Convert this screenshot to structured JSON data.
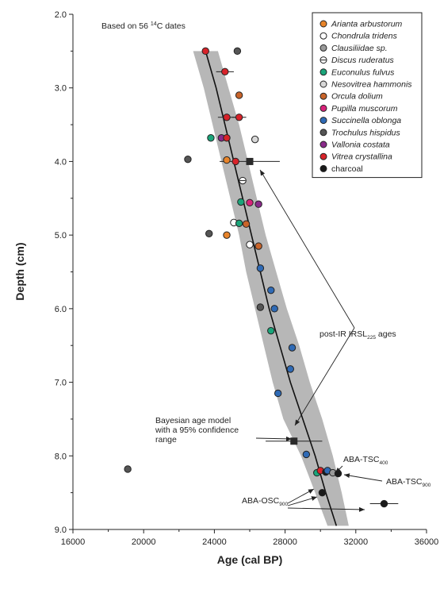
{
  "chart_data": {
    "type": "scatter",
    "xlabel": "Age (cal BP)",
    "ylabel": "Depth (cm)",
    "xlim": [
      16000,
      36000
    ],
    "ylim": [
      2.0,
      9.0
    ],
    "y_inverted": true,
    "xticks": [
      "16000",
      "20000",
      "24000",
      "28000",
      "32000",
      "36000"
    ],
    "yticks": [
      "2.0",
      "3.0",
      "4.0",
      "5.0",
      "6.0",
      "7.0",
      "8.0",
      "9.0"
    ],
    "note": "Based on 56 ¹⁴C dates",
    "legend_position": "top-right",
    "species": [
      {
        "name": "Arianta arbustorum",
        "color": "#e8842a",
        "italic": true,
        "dashed": false
      },
      {
        "name": "Chondrula tridens",
        "color": "#ffffff",
        "italic": true,
        "dashed": false
      },
      {
        "name": "Clausiliidae sp.",
        "color": "#9a9a9a",
        "italic": true,
        "dashed": false
      },
      {
        "name": "Discus ruderatus",
        "color": "#ffffff",
        "italic": true,
        "dashed": true
      },
      {
        "name": "Euconulus fulvus",
        "color": "#1aa57a",
        "italic": true,
        "dashed": false
      },
      {
        "name": "Nesovitrea hammonis",
        "color": "#d8d8d8",
        "italic": true,
        "dashed": false
      },
      {
        "name": "Orcula dolium",
        "color": "#c9642a",
        "italic": true,
        "dashed": false
      },
      {
        "name": "Pupilla muscorum",
        "color": "#d8237a",
        "italic": true,
        "dashed": false
      },
      {
        "name": "Succinella oblonga",
        "color": "#2f6ab5",
        "italic": true,
        "dashed": false
      },
      {
        "name": "Trochulus hispidus",
        "color": "#555555",
        "italic": true,
        "dashed": false
      },
      {
        "name": "Vallonia costata",
        "color": "#8a2a8a",
        "italic": true,
        "dashed": false
      },
      {
        "name": "Vitrea crystallina",
        "color": "#d8232a",
        "italic": true,
        "dashed": false
      },
      {
        "name": "charcoal",
        "color": "#1a1a1a",
        "italic": false,
        "dashed": false
      }
    ],
    "points": [
      {
        "s": 11,
        "x": 23500,
        "y": 2.5,
        "err": 0
      },
      {
        "s": 9,
        "x": 25300,
        "y": 2.5,
        "err": 0
      },
      {
        "s": 11,
        "x": 24600,
        "y": 2.78,
        "err": 500
      },
      {
        "s": 6,
        "x": 25400,
        "y": 3.1,
        "err": 0
      },
      {
        "s": 11,
        "x": 24700,
        "y": 3.4,
        "err": 500
      },
      {
        "s": 11,
        "x": 25400,
        "y": 3.4,
        "err": 400
      },
      {
        "s": 4,
        "x": 23800,
        "y": 3.68,
        "err": 0
      },
      {
        "s": 10,
        "x": 24400,
        "y": 3.68,
        "err": 0
      },
      {
        "s": 11,
        "x": 24700,
        "y": 3.68,
        "err": 0
      },
      {
        "s": 5,
        "x": 26300,
        "y": 3.7,
        "err": 0
      },
      {
        "s": 9,
        "x": 22500,
        "y": 3.97,
        "err": 0
      },
      {
        "s": 0,
        "x": 24700,
        "y": 3.98,
        "err": 0
      },
      {
        "s": 11,
        "x": 25200,
        "y": 4.0,
        "err": 0
      },
      {
        "s": 3,
        "x": 25600,
        "y": 4.26,
        "err": 0
      },
      {
        "s": 4,
        "x": 25500,
        "y": 4.55,
        "err": 0
      },
      {
        "s": 7,
        "x": 26000,
        "y": 4.56,
        "err": 0
      },
      {
        "s": 10,
        "x": 26500,
        "y": 4.58,
        "err": 0
      },
      {
        "s": 1,
        "x": 25100,
        "y": 4.83,
        "err": 0
      },
      {
        "s": 4,
        "x": 25400,
        "y": 4.84,
        "err": 0
      },
      {
        "s": 6,
        "x": 25800,
        "y": 4.85,
        "err": 0
      },
      {
        "s": 9,
        "x": 23700,
        "y": 4.98,
        "err": 0
      },
      {
        "s": 0,
        "x": 24700,
        "y": 5.0,
        "err": 0
      },
      {
        "s": 1,
        "x": 26000,
        "y": 5.13,
        "err": 0
      },
      {
        "s": 6,
        "x": 26500,
        "y": 5.15,
        "err": 0
      },
      {
        "s": 8,
        "x": 26600,
        "y": 5.45,
        "err": 0
      },
      {
        "s": 8,
        "x": 27200,
        "y": 5.75,
        "err": 0
      },
      {
        "s": 8,
        "x": 27400,
        "y": 6.0,
        "err": 0
      },
      {
        "s": 9,
        "x": 26600,
        "y": 5.98,
        "err": 0
      },
      {
        "s": 4,
        "x": 27200,
        "y": 6.3,
        "err": 0
      },
      {
        "s": 8,
        "x": 28400,
        "y": 6.53,
        "err": 0
      },
      {
        "s": 8,
        "x": 28300,
        "y": 6.82,
        "err": 0
      },
      {
        "s": 8,
        "x": 27600,
        "y": 7.15,
        "err": 0
      },
      {
        "s": 8,
        "x": 29200,
        "y": 7.98,
        "err": 0
      },
      {
        "s": 9,
        "x": 19100,
        "y": 8.18,
        "err": 0
      },
      {
        "s": 4,
        "x": 29800,
        "y": 8.23,
        "err": 0
      },
      {
        "s": 11,
        "x": 30000,
        "y": 8.2,
        "err": 0
      },
      {
        "s": 12,
        "x": 30300,
        "y": 8.22,
        "err": 0
      },
      {
        "s": 8,
        "x": 30400,
        "y": 8.2,
        "err": 0
      },
      {
        "s": 2,
        "x": 30700,
        "y": 8.23,
        "err": 0
      },
      {
        "s": 12,
        "x": 31000,
        "y": 8.24,
        "err": 0
      },
      {
        "s": 12,
        "x": 30100,
        "y": 8.5,
        "err": 0
      },
      {
        "s": 12,
        "x": 33600,
        "y": 8.65,
        "err": 800
      }
    ],
    "model_median": [
      [
        23500,
        2.5
      ],
      [
        24100,
        3.0
      ],
      [
        24600,
        3.5
      ],
      [
        25100,
        4.0
      ],
      [
        25600,
        4.5
      ],
      [
        26100,
        5.0
      ],
      [
        26600,
        5.5
      ],
      [
        27100,
        6.0
      ],
      [
        27700,
        6.5
      ],
      [
        28300,
        7.0
      ],
      [
        29000,
        7.5
      ],
      [
        29700,
        8.0
      ],
      [
        30300,
        8.5
      ],
      [
        30900,
        8.95
      ]
    ],
    "model_band": {
      "lower": [
        [
          22800,
          2.5
        ],
        [
          23400,
          3.0
        ],
        [
          23900,
          3.5
        ],
        [
          24400,
          4.0
        ],
        [
          24900,
          4.5
        ],
        [
          25400,
          5.0
        ],
        [
          25800,
          5.5
        ],
        [
          26300,
          6.0
        ],
        [
          26800,
          6.5
        ],
        [
          27300,
          7.0
        ],
        [
          27900,
          7.5
        ],
        [
          28900,
          8.0
        ],
        [
          29700,
          8.5
        ],
        [
          30400,
          8.95
        ]
      ],
      "upper": [
        [
          24200,
          2.5
        ],
        [
          24800,
          3.0
        ],
        [
          25400,
          3.5
        ],
        [
          25900,
          4.0
        ],
        [
          26400,
          4.5
        ],
        [
          26900,
          5.0
        ],
        [
          27500,
          5.5
        ],
        [
          28100,
          6.0
        ],
        [
          28800,
          6.5
        ],
        [
          29400,
          7.0
        ],
        [
          30100,
          7.5
        ],
        [
          30700,
          8.0
        ],
        [
          31200,
          8.5
        ],
        [
          31600,
          8.95
        ]
      ]
    },
    "irsl_ages": [
      {
        "x": 26000,
        "y": 4.0,
        "err": 1700
      },
      {
        "x": 28500,
        "y": 7.8,
        "err": 1600
      }
    ],
    "annotations": {
      "irsl": {
        "pre": "post-IR IRSL",
        "sub": "225",
        "post": " ages"
      },
      "bayes": [
        "Bayesian age model",
        "with a 95% confidence",
        "range"
      ],
      "aba_tsc_400": {
        "pre": "ABA-TSC",
        "sub": "400"
      },
      "aba_tsc_900": {
        "pre": "ABA-TSC",
        "sub": "900"
      },
      "aba_osc_900": {
        "pre": "ABA-OSC",
        "sub": "900"
      }
    }
  }
}
